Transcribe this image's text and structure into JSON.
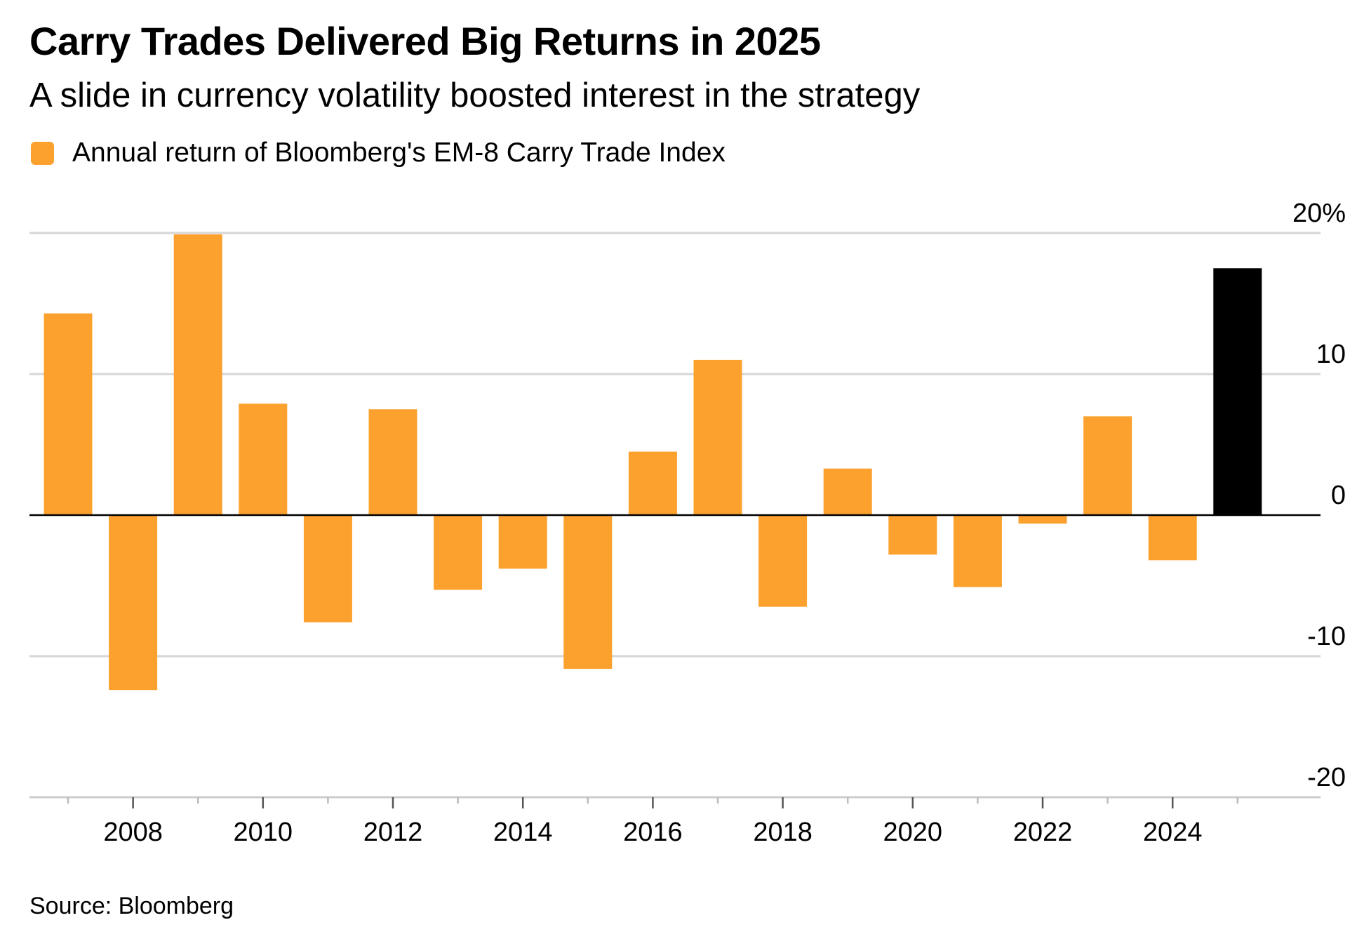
{
  "header": {
    "title": "Carry Trades Delivered Big Returns in 2025",
    "subtitle": "A slide in currency volatility boosted interest in the strategy"
  },
  "legend": {
    "label": "Annual return of Bloomberg's EM-8 Carry Trade Index",
    "color": "#FCA12E"
  },
  "footer": {
    "source": "Source: Bloomberg"
  },
  "chart_data": {
    "type": "bar",
    "title": "Carry Trades Delivered Big Returns in 2025",
    "subtitle": "A slide in currency volatility boosted interest in the strategy",
    "xlabel": "",
    "ylabel": "",
    "categories": [
      "2007",
      "2008",
      "2009",
      "2010",
      "2011",
      "2012",
      "2013",
      "2014",
      "2015",
      "2016",
      "2017",
      "2018",
      "2019",
      "2020",
      "2021",
      "2022",
      "2023",
      "2024",
      "2025"
    ],
    "series": [
      {
        "name": "Annual return of Bloomberg's EM-8 Carry Trade Index",
        "values": [
          14.3,
          -12.4,
          19.9,
          7.9,
          -7.6,
          7.5,
          -5.3,
          -3.8,
          -10.9,
          4.5,
          11.0,
          -6.5,
          3.3,
          -2.8,
          -5.1,
          -0.6,
          7.0,
          -3.2,
          17.5
        ]
      }
    ],
    "highlight": {
      "category": "2025",
      "color": "#000000"
    },
    "bar_color": "#FCA12E",
    "ylim": [
      -20,
      20
    ],
    "yticks": [
      20,
      10,
      0,
      -10,
      -20
    ],
    "ytick_labels": [
      "20%",
      "10",
      "0",
      "-10",
      "-20"
    ],
    "xtick_labels": [
      "2008",
      "2010",
      "2012",
      "2014",
      "2016",
      "2018",
      "2020",
      "2022",
      "2024"
    ],
    "grid": true,
    "legend_position": "top-left",
    "axis_side": "right"
  }
}
